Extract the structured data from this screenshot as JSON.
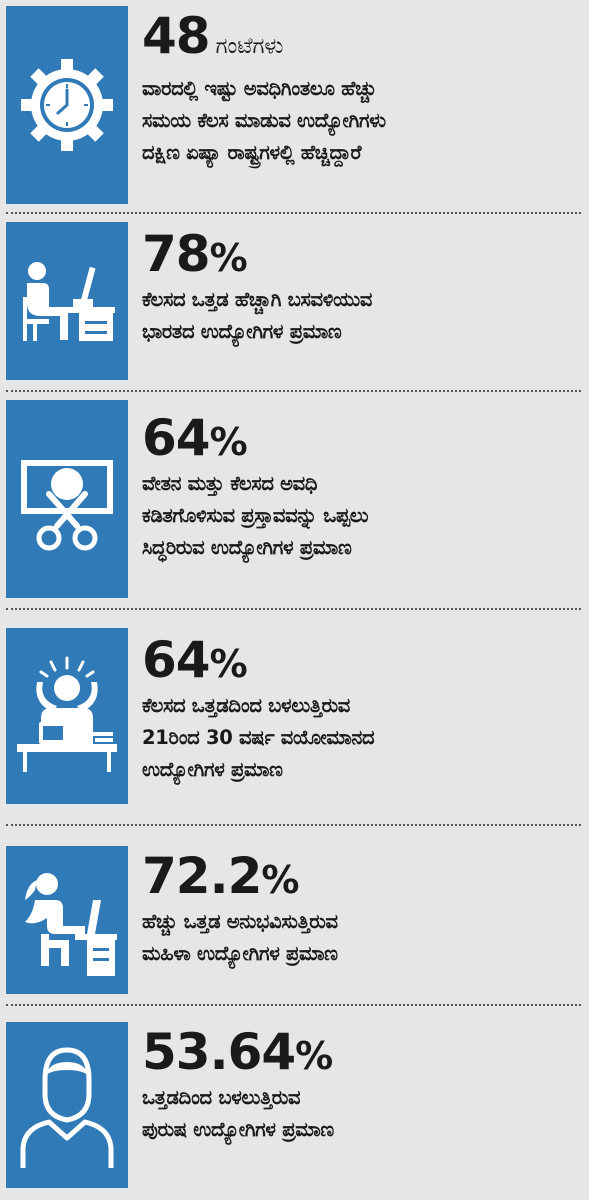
{
  "colors": {
    "accent": "#2f7ab7",
    "background": "#e6e6e6",
    "text": "#1a1a1a"
  },
  "items": [
    {
      "icon": "gear-clock-icon",
      "value": "48",
      "unit": "",
      "suffix": "ಗಂಟೆಗಳು",
      "lines": [
        "ವಾರದಲ್ಲಿ ಇಷ್ಟು ಅವಧಿಗಿಂತಲೂ ಹೆಚ್ಚು",
        "ಸಮಯ ಕೆಲಸ ಮಾಡುವ ಉದ್ಯೋಗಿಗಳು",
        "ದಕ್ಷಿಣ ಏಷ್ಯಾ ರಾಷ್ಟ್ರಗಳಲ್ಲಿ ಹೆಚ್ಚಿದ್ದಾರೆ"
      ]
    },
    {
      "icon": "person-at-desk-icon",
      "value": "78",
      "unit": "%",
      "suffix": "",
      "lines": [
        "ಕೆಲಸದ ಒತ್ತಡ ಹೆಚ್ಚಾಗಿ ಬಸವಳಿಯುವ",
        "ಭಾರತದ ಉದ್ಯೋಗಿಗಳ ಪ್ರಮಾಣ"
      ]
    },
    {
      "icon": "money-cut-icon",
      "value": "64",
      "unit": "%",
      "suffix": "",
      "lines": [
        "ವೇತನ ಮತ್ತು ಕೆಲಸದ ಅವಧಿ",
        "ಕಡಿತಗೊಳಿಸುವ ಪ್ರಸ್ತಾವವನ್ನು ಒಪ್ಪಲು",
        "ಸಿದ್ಧರಿರುವ ಉದ್ಯೋಗಿಗಳ ಪ್ರಮಾಣ"
      ]
    },
    {
      "icon": "stressed-worker-icon",
      "value": "64",
      "unit": "%",
      "suffix": "",
      "lines": [
        "ಕೆಲಸದ ಒತ್ತಡದಿಂದ ಬಳಲುತ್ತಿರುವ",
        "21ರಿಂದ 30 ವರ್ಷ ವಯೋಮಾನದ",
        "ಉದ್ಯೋಗಿಗಳ ಪ್ರಮಾಣ"
      ]
    },
    {
      "icon": "woman-at-laptop-icon",
      "value": "72.2",
      "unit": "%",
      "suffix": "",
      "lines": [
        "ಹೆಚ್ಚು ಒತ್ತಡ ಅನುಭವಿಸುತ್ತಿರುವ",
        "ಮಹಿಳಾ ಉದ್ಯೋಗಿಗಳ ಪ್ರಮಾಣ"
      ]
    },
    {
      "icon": "man-avatar-icon",
      "value": "53.64",
      "unit": "%",
      "suffix": "",
      "lines": [
        "ಒತ್ತಡದಿಂದ ಬಳಲುತ್ತಿರುವ",
        "ಪುರುಷ ಉದ್ಯೋಗಿಗಳ ಪ್ರಮಾಣ"
      ]
    }
  ]
}
